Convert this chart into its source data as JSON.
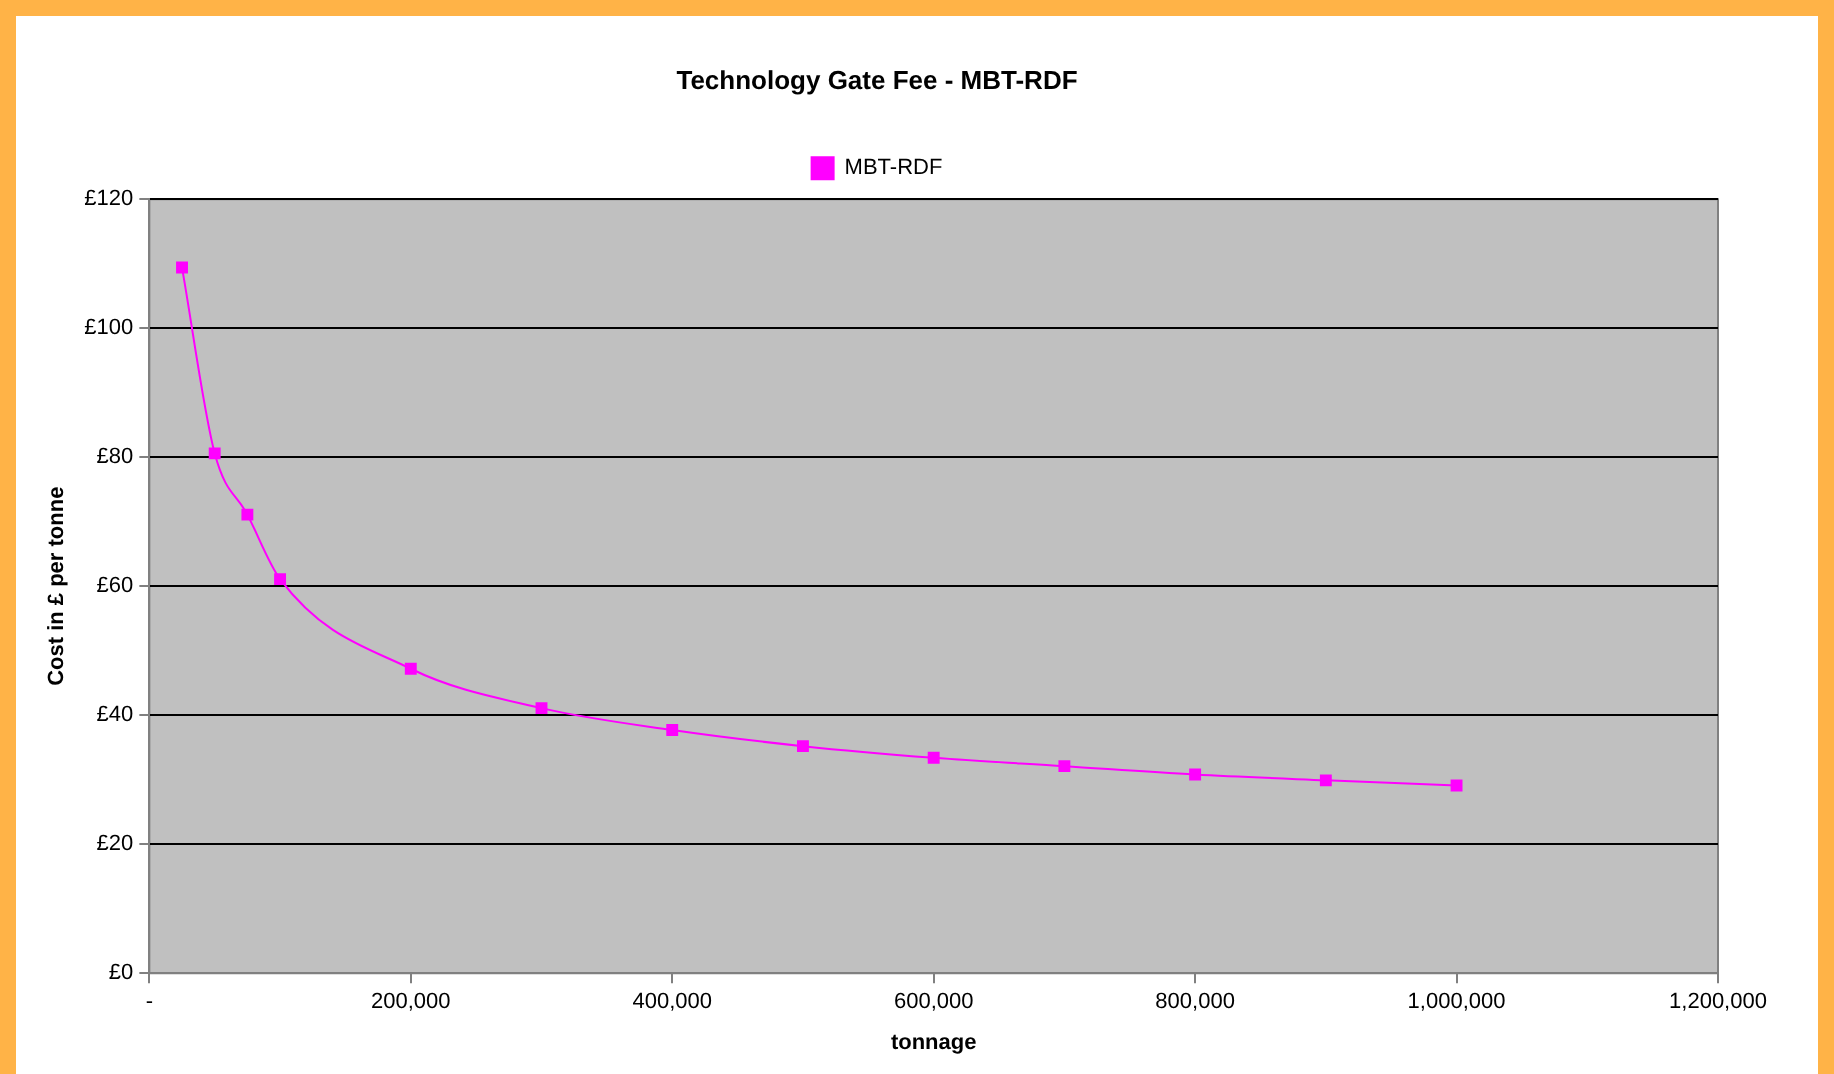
{
  "chart_data": {
    "type": "line",
    "title": "Technology Gate Fee - MBT-RDF",
    "xlabel": "tonnage",
    "ylabel": "Cost in £ per tonne",
    "x": [
      25000,
      50000,
      75000,
      100000,
      200000,
      300000,
      400000,
      500000,
      600000,
      700000,
      800000,
      900000,
      1000000
    ],
    "series": [
      {
        "name": "MBT-RDF",
        "color": "#ff00ff",
        "values": [
          109.4,
          80.6,
          71.1,
          61.1,
          47.2,
          41.1,
          37.7,
          35.2,
          33.4,
          32.1,
          30.8,
          29.9,
          29.1
        ]
      }
    ],
    "xlim": [
      0,
      1200000
    ],
    "xticks": [
      {
        "value": 0,
        "label": "-"
      },
      {
        "value": 200000,
        "label": "200,000"
      },
      {
        "value": 400000,
        "label": "400,000"
      },
      {
        "value": 600000,
        "label": "600,000"
      },
      {
        "value": 800000,
        "label": "800,000"
      },
      {
        "value": 1000000,
        "label": "1,000,000"
      },
      {
        "value": 1200000,
        "label": "1,200,000"
      }
    ],
    "ylim": [
      0,
      120
    ],
    "yticks": [
      {
        "value": 0,
        "label": "£0"
      },
      {
        "value": 20,
        "label": "£20"
      },
      {
        "value": 40,
        "label": "£40"
      },
      {
        "value": 60,
        "label": "£60"
      },
      {
        "value": 80,
        "label": "£80"
      },
      {
        "value": 100,
        "label": "£100"
      },
      {
        "value": 120,
        "label": "£120"
      }
    ],
    "grid": "y",
    "legend": "top",
    "marker": "square",
    "line_style": "solid"
  }
}
